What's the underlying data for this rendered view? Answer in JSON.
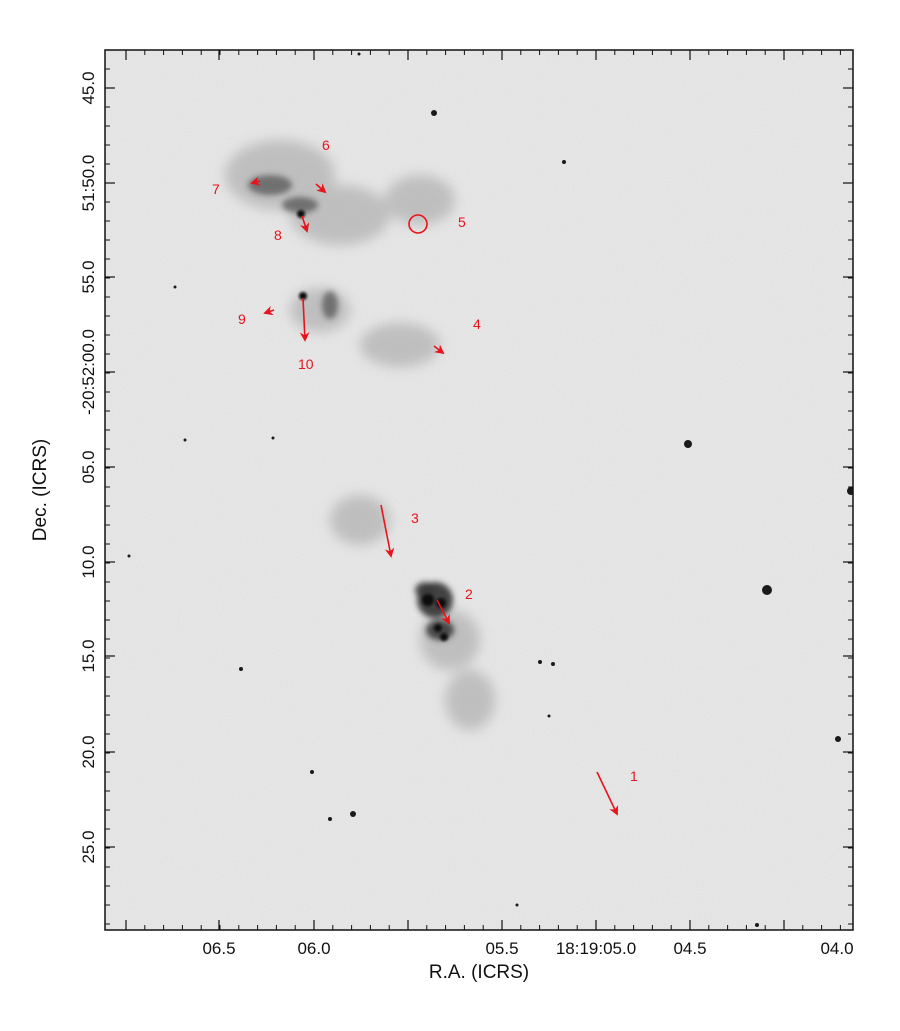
{
  "axes": {
    "xlabel": "R.A. (ICRS)",
    "ylabel": "Dec. (ICRS)",
    "x_ticks": [
      "06.5",
      "06.0",
      "05.5",
      "18:19:05.0",
      "04.5",
      "04.0"
    ],
    "y_ticks": [
      "45.0",
      "51:50.0",
      "55.0",
      "-20:52:00.0",
      "05.0",
      "10.0",
      "15.0",
      "20.0",
      "25.0"
    ]
  },
  "colors": {
    "annotation": "#e8131b",
    "frame": "#111111",
    "background": "#e9e9e9"
  },
  "labels": [
    "1",
    "2",
    "3",
    "4",
    "5",
    "6",
    "7",
    "8",
    "9",
    "10"
  ]
}
